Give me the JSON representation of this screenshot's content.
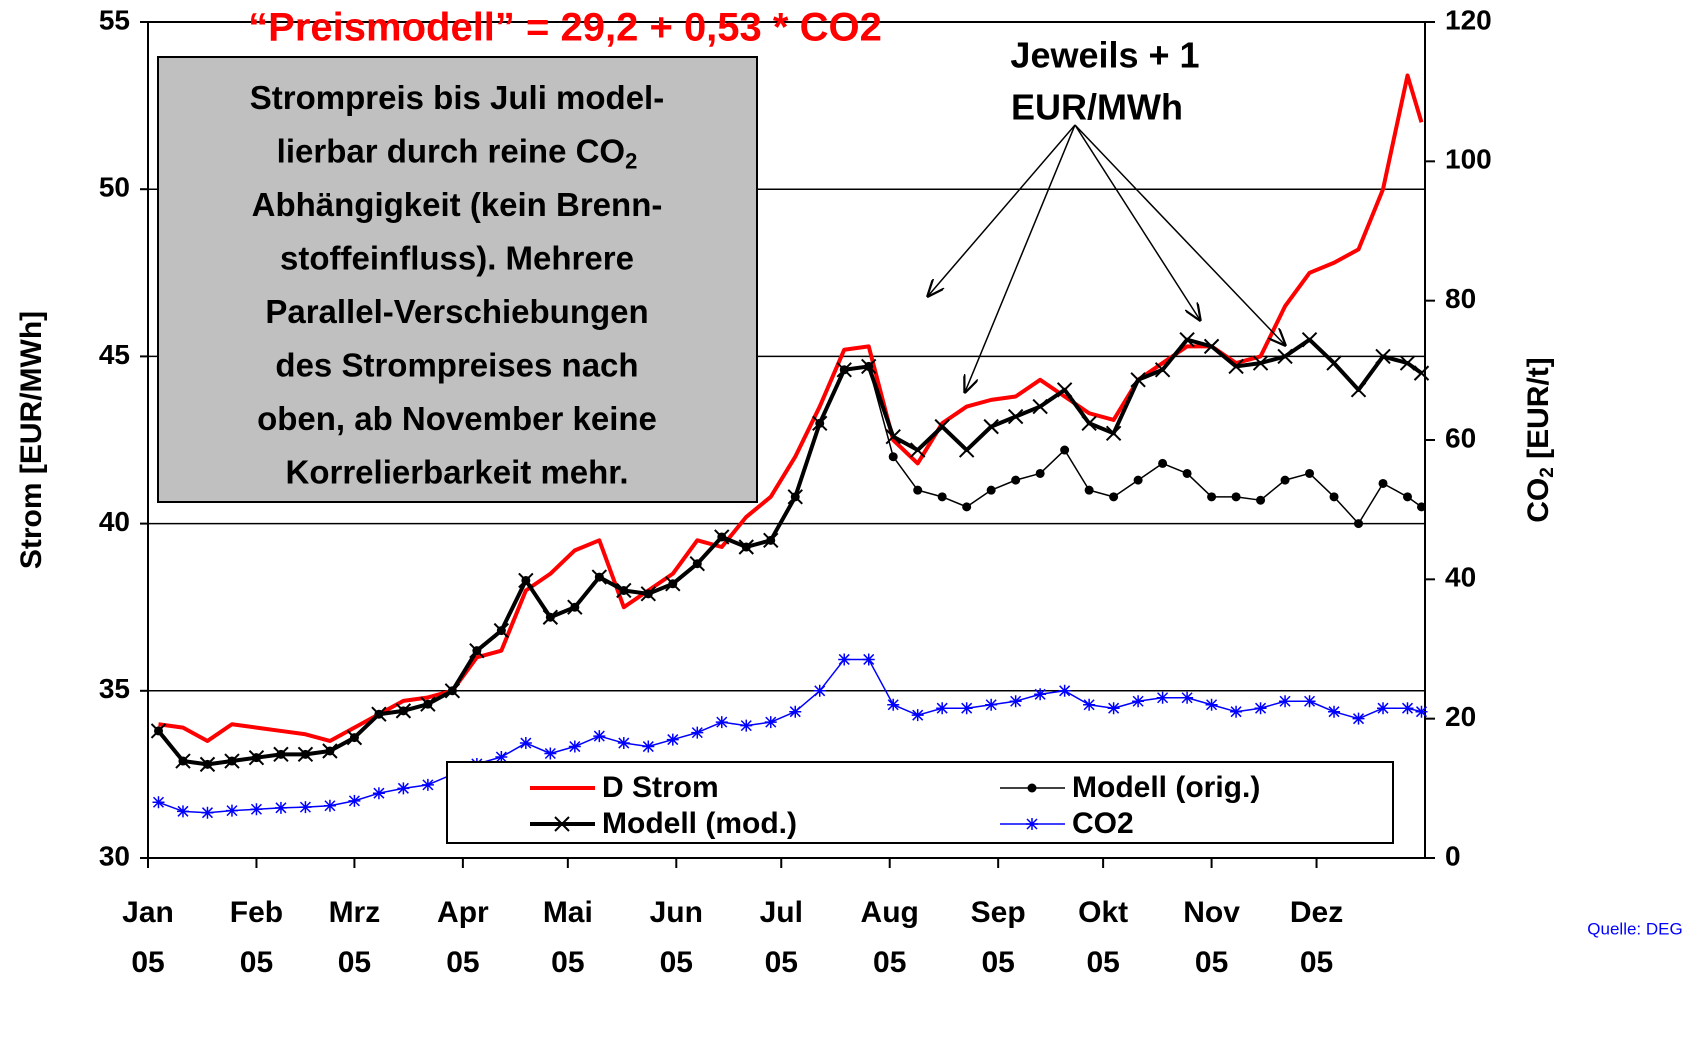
{
  "chart_data": {
    "type": "line",
    "title": "“Preismodell” = 29,2 + 0,53 * CO2",
    "ylabel": "Strom [EUR/MWh]",
    "y2label": {
      "main": "CO",
      "sub": "2",
      "unit": " [EUR/t]"
    },
    "source": "Quelle: DEG",
    "annotation_box": {
      "lines": [
        "Strompreis bis Juli model-",
        "lierbar durch reine  CO",
        "Abhängigkeit (kein Brenn-",
        "stoffeinfluss). Mehrere",
        "Parallel-Verschiebungen",
        "des Strompreises nach",
        "oben,  ab November keine",
        "Korrelierbarkeit mehr."
      ],
      "sub": "2"
    },
    "arrow_note": [
      "Jeweils + 1",
      "EUR/MWh"
    ],
    "grid": true,
    "xlim": [
      0,
      365
    ],
    "xticks": [
      {
        "value": 0,
        "label": "Jan 05"
      },
      {
        "value": 31,
        "label": "Feb 05"
      },
      {
        "value": 59,
        "label": "Mrz 05"
      },
      {
        "value": 90,
        "label": "Apr 05"
      },
      {
        "value": 120,
        "label": "Mai 05"
      },
      {
        "value": 151,
        "label": "Jun 05"
      },
      {
        "value": 181,
        "label": "Jul 05"
      },
      {
        "value": 212,
        "label": "Aug 05"
      },
      {
        "value": 243,
        "label": "Sep 05"
      },
      {
        "value": 273,
        "label": "Okt 05"
      },
      {
        "value": 304,
        "label": "Nov 05"
      },
      {
        "value": 334,
        "label": "Dez 05"
      }
    ],
    "ylim": [
      30,
      55
    ],
    "yticks": [
      30,
      35,
      40,
      45,
      50,
      55
    ],
    "y2lim": [
      0,
      120
    ],
    "y2ticks": [
      0,
      20,
      40,
      60,
      80,
      100,
      120
    ],
    "x": [
      3,
      10,
      17,
      24,
      31,
      38,
      45,
      52,
      59,
      66,
      73,
      80,
      87,
      94,
      101,
      108,
      115,
      122,
      129,
      136,
      143,
      150,
      157,
      164,
      171,
      178,
      185,
      192,
      199,
      206,
      213,
      220,
      227,
      234,
      241,
      248,
      255,
      262,
      269,
      276,
      283,
      290,
      297,
      304,
      311,
      318,
      325,
      332,
      339,
      346,
      353,
      360,
      364
    ],
    "series": [
      {
        "name": "D Strom",
        "color": "#ff0000",
        "width": 4,
        "marker": "none",
        "values": [
          34.0,
          33.9,
          33.5,
          34.0,
          33.9,
          33.8,
          33.7,
          33.5,
          33.9,
          34.3,
          34.7,
          34.8,
          35.0,
          36.0,
          36.2,
          38.0,
          38.5,
          39.2,
          39.5,
          37.5,
          38.0,
          38.5,
          39.5,
          39.3,
          40.2,
          40.8,
          42.0,
          43.5,
          45.2,
          45.3,
          42.5,
          41.8,
          43.0,
          43.5,
          43.7,
          43.8,
          44.3,
          43.8,
          43.3,
          43.1,
          44.3,
          44.8,
          45.3,
          45.3,
          44.8,
          45.0,
          46.5,
          47.5,
          47.8,
          48.2,
          50.0,
          53.4,
          52.0
        ]
      },
      {
        "name": "Modell (orig.)",
        "color": "#000000",
        "width": 1.5,
        "marker": "dot",
        "values": [
          33.8,
          32.9,
          32.8,
          32.9,
          33.0,
          33.1,
          33.1,
          33.2,
          33.6,
          34.3,
          34.4,
          34.6,
          35.0,
          36.2,
          36.8,
          38.3,
          37.2,
          37.5,
          38.4,
          38.0,
          37.9,
          38.2,
          38.8,
          39.6,
          39.3,
          39.5,
          40.8,
          43.0,
          44.6,
          44.7,
          42.0,
          41.0,
          40.8,
          40.5,
          41.0,
          41.3,
          41.5,
          42.2,
          41.0,
          40.8,
          41.3,
          41.8,
          41.5,
          40.8,
          40.8,
          40.7,
          41.3,
          41.5,
          40.8,
          40.0,
          41.2,
          40.8,
          40.5
        ]
      },
      {
        "name": "Modell (mod.)",
        "color": "#000000",
        "width": 4,
        "marker": "x",
        "values": [
          33.8,
          32.9,
          32.8,
          32.9,
          33.0,
          33.1,
          33.1,
          33.2,
          33.6,
          34.3,
          34.4,
          34.6,
          35.0,
          36.2,
          36.8,
          38.3,
          37.2,
          37.5,
          38.4,
          38.0,
          37.9,
          38.2,
          38.8,
          39.6,
          39.3,
          39.5,
          40.8,
          43.0,
          44.6,
          44.7,
          42.6,
          42.2,
          42.9,
          42.2,
          42.9,
          43.2,
          43.5,
          44.0,
          43.0,
          42.7,
          44.3,
          44.6,
          45.5,
          45.3,
          44.7,
          44.8,
          45.0,
          45.5,
          44.8,
          44.0,
          45.0,
          44.8,
          44.5
        ]
      },
      {
        "name": "CO2",
        "color": "#0000ff",
        "width": 1.5,
        "marker": "star",
        "axis": "y2",
        "values": [
          8.0,
          6.7,
          6.5,
          6.8,
          7.0,
          7.2,
          7.3,
          7.5,
          8.2,
          9.3,
          10.0,
          10.5,
          12.0,
          13.5,
          14.5,
          16.5,
          15.0,
          16.0,
          17.5,
          16.5,
          16.0,
          17.0,
          18.0,
          19.5,
          19.0,
          19.5,
          21.0,
          24.0,
          28.5,
          28.5,
          22.0,
          20.5,
          21.5,
          21.5,
          22.0,
          22.5,
          23.5,
          24.0,
          22.0,
          21.5,
          22.5,
          23.0,
          23.0,
          22.0,
          21.0,
          21.5,
          22.5,
          22.5,
          21.0,
          20.0,
          21.5,
          21.5,
          21.0
        ]
      }
    ]
  }
}
